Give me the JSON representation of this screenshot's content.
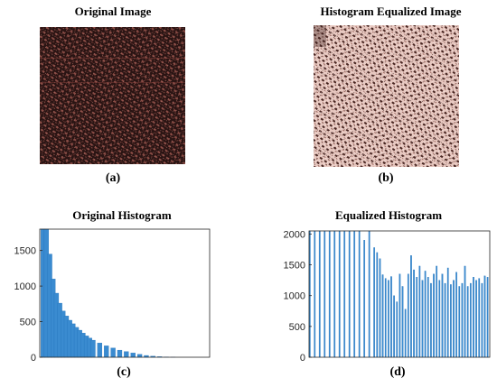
{
  "panels": {
    "a": {
      "title": "Original Image",
      "caption": "(a)"
    },
    "b": {
      "title": "Histogram Equalized Image",
      "caption": "(b)"
    },
    "c": {
      "title": "Original Histogram",
      "caption": "(c)"
    },
    "d": {
      "title": "Equalized Histogram",
      "caption": "(d)"
    }
  },
  "colors": {
    "bar": "#3a8bd0",
    "bar_edge": "#1f6fb8",
    "axis": "#262626",
    "image_dark": "#2a1413",
    "image_light": "#e8c8c0"
  },
  "chart_data": [
    {
      "type": "bar",
      "title": "Original Histogram",
      "ylim": [
        0,
        1800
      ],
      "yticks": [
        0,
        500,
        1000,
        1500
      ],
      "xlim": [
        0,
        255
      ],
      "description_values": "bin counts across intensity levels (decaying)",
      "x": [
        5,
        10,
        15,
        20,
        25,
        30,
        35,
        40,
        45,
        50,
        55,
        60,
        65,
        70,
        75,
        80,
        90,
        100,
        110,
        120,
        130,
        140,
        150,
        160,
        170,
        180,
        190,
        200
      ],
      "values": [
        1800,
        1800,
        1450,
        1100,
        900,
        760,
        650,
        580,
        520,
        470,
        420,
        380,
        340,
        300,
        270,
        240,
        200,
        160,
        130,
        100,
        80,
        60,
        40,
        25,
        15,
        8,
        3,
        1
      ]
    },
    {
      "type": "bar",
      "title": "Equalized Histogram",
      "ylim": [
        0,
        2050
      ],
      "yticks": [
        0,
        500,
        1000,
        1500,
        2000
      ],
      "xlim": [
        0,
        255
      ],
      "x": [
        1,
        8,
        15,
        22,
        29,
        36,
        43,
        50,
        57,
        64,
        71,
        78,
        85,
        92,
        96,
        100,
        104,
        108,
        112,
        116,
        120,
        124,
        128,
        132,
        136,
        140,
        144,
        148,
        152,
        156,
        160,
        164,
        168,
        172,
        176,
        180,
        184,
        188,
        192,
        196,
        200,
        204,
        208,
        212,
        216,
        220,
        224,
        228,
        232,
        236,
        240,
        244,
        248,
        252
      ],
      "values": [
        2050,
        2050,
        2050,
        2050,
        2050,
        2050,
        2050,
        2050,
        2050,
        2050,
        2050,
        1900,
        2050,
        1780,
        1700,
        1600,
        1340,
        1280,
        1250,
        1310,
        1000,
        900,
        1350,
        1150,
        780,
        1350,
        1650,
        1420,
        1300,
        1480,
        1250,
        1400,
        1300,
        1200,
        1350,
        1480,
        1250,
        1350,
        1200,
        1450,
        1180,
        1250,
        1380,
        1150,
        1200,
        1480,
        1150,
        1200,
        1300,
        1250,
        1280,
        1200,
        1320,
        1300
      ]
    }
  ]
}
